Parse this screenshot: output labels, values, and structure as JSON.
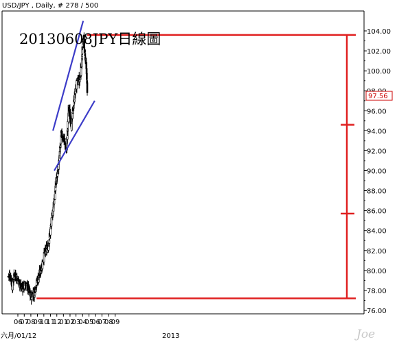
{
  "header": {
    "text": "USD/JPY , Daily, # 278 / 500"
  },
  "watermark": "Joe",
  "chart_data": {
    "type": "candlestick",
    "title": "20130608JPY日線圖",
    "symbol": "USD/JPY",
    "interval": "Daily",
    "x_tick_labels": [
      "06",
      "07",
      "08",
      "09",
      "10",
      "11",
      "12",
      "01",
      "02",
      "03",
      "04",
      "05",
      "06",
      "07",
      "08",
      "09"
    ],
    "x_sub_labels": [
      "六月/01/12",
      "2013"
    ],
    "y_tick_labels": [
      "76.00",
      "78.00",
      "80.00",
      "82.00",
      "84.00",
      "86.00",
      "88.00",
      "90.00",
      "92.00",
      "94.00",
      "96.00",
      "98.00",
      "100.00",
      "102.00",
      "104.00"
    ],
    "ylim": [
      76,
      105
    ],
    "grid": false,
    "last_price": "97.56",
    "close_path": [
      {
        "date": "2012-06-01",
        "value": 79.4
      },
      {
        "date": "2012-06-10",
        "value": 79.7
      },
      {
        "date": "2012-06-20",
        "value": 78.4
      },
      {
        "date": "2012-07-01",
        "value": 79.7
      },
      {
        "date": "2012-07-15",
        "value": 79.2
      },
      {
        "date": "2012-08-01",
        "value": 78.3
      },
      {
        "date": "2012-08-20",
        "value": 78.5
      },
      {
        "date": "2012-09-01",
        "value": 78.4
      },
      {
        "date": "2012-09-14",
        "value": 77.4
      },
      {
        "date": "2012-10-01",
        "value": 77.8
      },
      {
        "date": "2012-10-15",
        "value": 79.0
      },
      {
        "date": "2012-11-01",
        "value": 80.0
      },
      {
        "date": "2012-11-20",
        "value": 81.8
      },
      {
        "date": "2012-12-05",
        "value": 82.3
      },
      {
        "date": "2012-12-25",
        "value": 85.5
      },
      {
        "date": "2013-01-10",
        "value": 88.5
      },
      {
        "date": "2013-01-25",
        "value": 90.7
      },
      {
        "date": "2013-02-05",
        "value": 93.6
      },
      {
        "date": "2013-02-20",
        "value": 93.0
      },
      {
        "date": "2013-03-01",
        "value": 91.9
      },
      {
        "date": "2013-03-12",
        "value": 96.2
      },
      {
        "date": "2013-03-25",
        "value": 94.6
      },
      {
        "date": "2013-04-05",
        "value": 96.8
      },
      {
        "date": "2013-04-15",
        "value": 98.3
      },
      {
        "date": "2013-04-25",
        "value": 99.0
      },
      {
        "date": "2013-05-05",
        "value": 99.1
      },
      {
        "date": "2013-05-15",
        "value": 102.2
      },
      {
        "date": "2013-05-22",
        "value": 103.2
      },
      {
        "date": "2013-05-30",
        "value": 100.8
      },
      {
        "date": "2013-06-05",
        "value": 99.5
      },
      {
        "date": "2013-06-07",
        "value": 97.56
      }
    ],
    "trendlines": [
      {
        "name": "upper-channel",
        "color": "#3c3cc8",
        "points": [
          {
            "date": "2012-12-28",
            "value": 94.0
          },
          {
            "date": "2013-05-19",
            "value": 105.0
          }
        ]
      },
      {
        "name": "lower-channel",
        "color": "#3c3cc8",
        "points": [
          {
            "date": "2013-01-03",
            "value": 90.0
          },
          {
            "date": "2013-07-12",
            "value": 97.0
          }
        ]
      }
    ],
    "red_levels": [
      {
        "value": 103.6
      },
      {
        "value": 77.2
      }
    ],
    "red_ticks": [
      {
        "value": 94.6
      },
      {
        "value": 85.7
      }
    ],
    "colors": {
      "candles": "#000000",
      "trendline": "#3c3cc8",
      "levels": "#e02020",
      "last_price_box": "#cc0000"
    }
  }
}
